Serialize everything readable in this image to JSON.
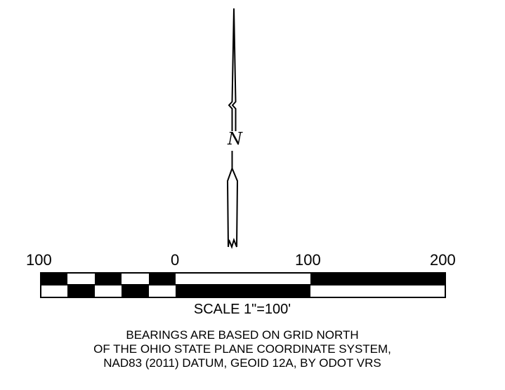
{
  "north_arrow": {
    "letter": "N"
  },
  "scale_bar": {
    "tick_labels": [
      "100",
      "0",
      "100",
      "200"
    ],
    "title": "SCALE 1\"=100'"
  },
  "basis_note": {
    "lines": [
      "BEARINGS ARE BASED ON GRID NORTH",
      "OF THE OHIO STATE PLANE COORDINATE SYSTEM,",
      "NAD83 (2011) DATUM, GEOID 12A, BY ODOT VRS"
    ]
  }
}
